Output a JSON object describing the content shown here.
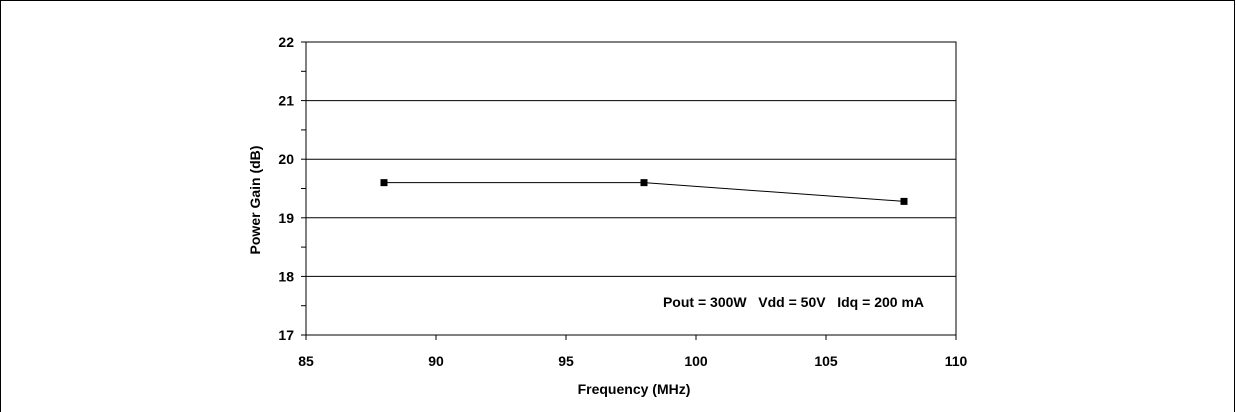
{
  "chart_data": {
    "type": "line",
    "xlabel": "Frequency (MHz)",
    "ylabel": "Power Gain (dB)",
    "xlim": [
      85,
      110
    ],
    "ylim": [
      17,
      22
    ],
    "xticks": [
      85,
      90,
      95,
      100,
      105,
      110
    ],
    "yticks": [
      17,
      18,
      19,
      20,
      21,
      22
    ],
    "grid": "horizontal major gridlines",
    "annotation": "Pout = 300W   Vdd = 50V   Idq = 200 mA",
    "series": [
      {
        "x": [
          88,
          98,
          108
        ],
        "y": [
          19.6,
          19.6,
          19.28
        ],
        "marker": "square",
        "color": "#000000"
      }
    ]
  }
}
